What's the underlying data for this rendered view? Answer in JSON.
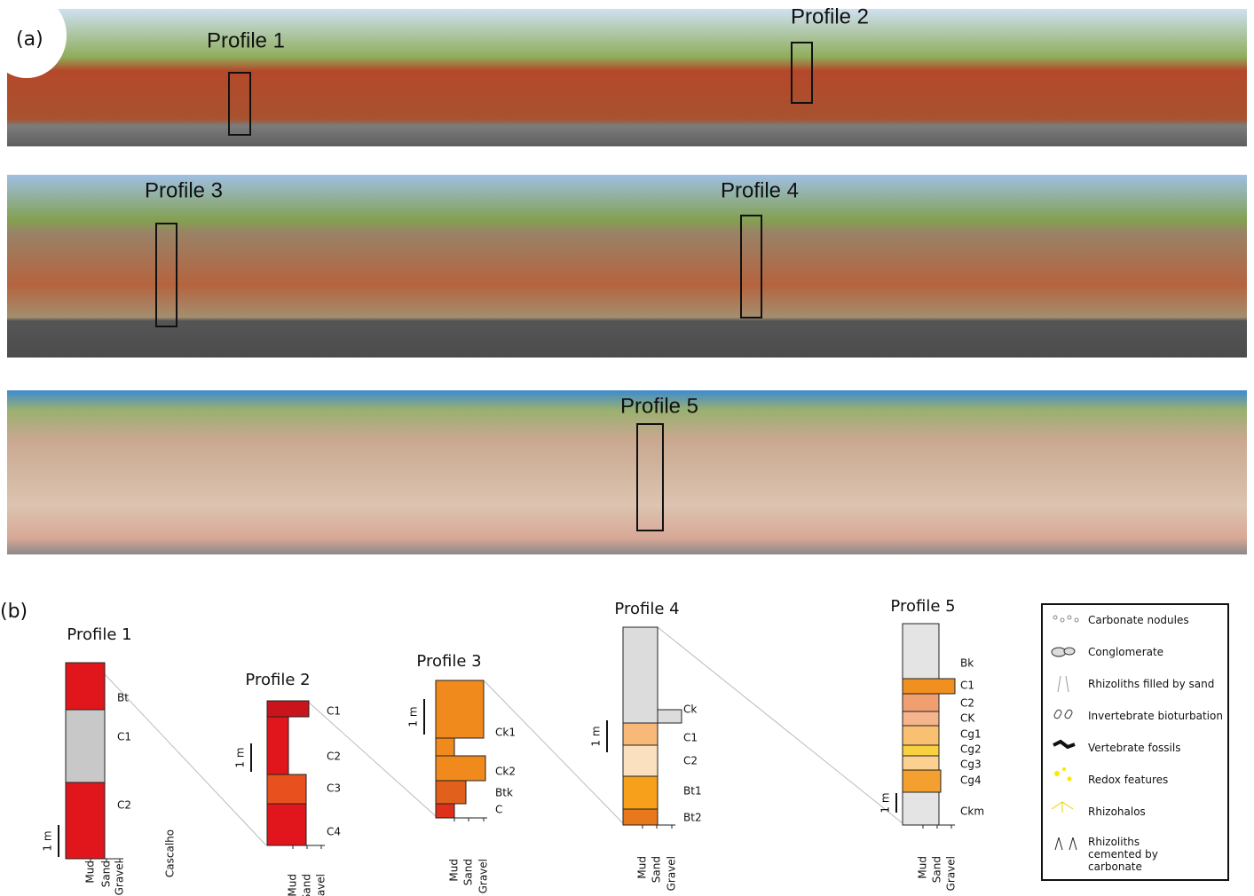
{
  "panel_a": {
    "label": "(a)",
    "photo_labels": [
      "Profile 1",
      "Profile 2",
      "Profile 3",
      "Profile 4",
      "Profile 5"
    ]
  },
  "panel_b": {
    "label": "(b)",
    "profiles": [
      {
        "title": "Profile 1",
        "horizons": [
          "Bt",
          "C1",
          "C2"
        ]
      },
      {
        "title": "Profile 2",
        "horizons": [
          "C1",
          "C2",
          "C3",
          "C4"
        ]
      },
      {
        "title": "Profile 3",
        "horizons": [
          "Ck1",
          "Ck2",
          "Btk",
          "C"
        ]
      },
      {
        "title": "Profile 4",
        "horizons": [
          "Ck",
          "C1",
          "C2",
          "Bt1",
          "Bt2"
        ]
      },
      {
        "title": "Profile 5",
        "horizons": [
          "Bk",
          "C1",
          "C2",
          "CK",
          "Cg1",
          "Cg2",
          "Cg3",
          "Cg4",
          "Ckm"
        ]
      }
    ],
    "grain_sizes": [
      "Mud",
      "Sand",
      "Gravel"
    ],
    "scale": "1 m",
    "note": "Cascalho"
  },
  "legend": [
    "Carbonate nodules",
    "Conglomerate",
    "Rhizoliths filled by sand",
    "Invertebrate bioturbation",
    "Vertebrate fossils",
    "Redox features",
    "Rhizohalos",
    "Rhizoliths cemented by carbonate"
  ]
}
